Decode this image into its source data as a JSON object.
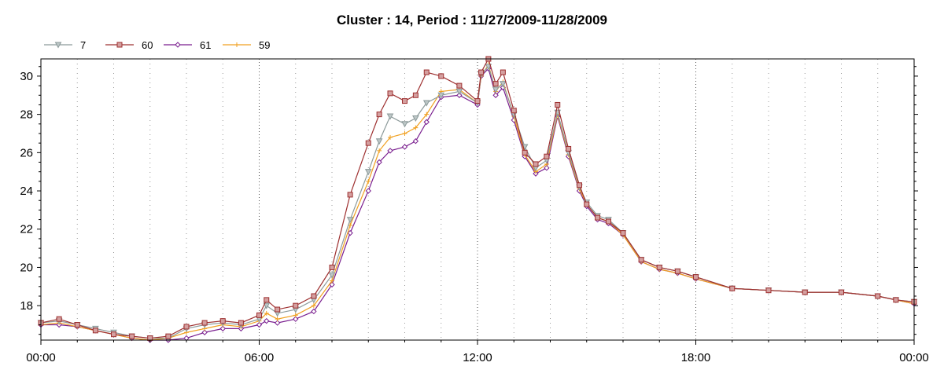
{
  "chart_data": {
    "type": "line",
    "title": "Cluster : 14, Period : 11/27/2009-11/28/2009",
    "xlabel": "",
    "ylabel": "",
    "x_unit": "hour of day (0 = 11/27/2009 00:00, 24 = 11/28/2009 00:00)",
    "xlim": [
      0,
      24
    ],
    "ylim": [
      16.2,
      30.9
    ],
    "x_ticks": [
      0,
      6,
      12,
      18,
      24
    ],
    "x_tick_labels": [
      "00:00",
      "06:00",
      "12:00",
      "18:00",
      "00:00"
    ],
    "y_ticks": [
      18,
      20,
      22,
      24,
      26,
      28,
      30
    ],
    "y_tick_labels": [
      "18",
      "20",
      "22",
      "24",
      "26",
      "28",
      "30"
    ],
    "grid": "dotted vertical lines every hour, major at 6-hour marks",
    "legend_position": "top-left",
    "series": [
      {
        "name": "7",
        "color": "#8c9a9a",
        "marker": "triangle-down",
        "points": [
          [
            0,
            17.1
          ],
          [
            0.5,
            17.2
          ],
          [
            1,
            17.0
          ],
          [
            1.5,
            16.8
          ],
          [
            2,
            16.6
          ],
          [
            2.5,
            16.4
          ],
          [
            3,
            16.3
          ],
          [
            3.5,
            16.3
          ],
          [
            4,
            16.8
          ],
          [
            4.5,
            17.0
          ],
          [
            5,
            17.1
          ],
          [
            5.5,
            17.0
          ],
          [
            6,
            17.3
          ],
          [
            6.2,
            18.0
          ],
          [
            6.5,
            17.6
          ],
          [
            7,
            17.8
          ],
          [
            7.5,
            18.3
          ],
          [
            8,
            19.6
          ],
          [
            8.5,
            22.5
          ],
          [
            9,
            25.0
          ],
          [
            9.3,
            26.6
          ],
          [
            9.6,
            27.9
          ],
          [
            10,
            27.5
          ],
          [
            10.3,
            27.8
          ],
          [
            10.6,
            28.6
          ],
          [
            11,
            29.0
          ],
          [
            11.5,
            29.2
          ],
          [
            12,
            28.6
          ],
          [
            12.1,
            30.1
          ],
          [
            12.3,
            30.5
          ],
          [
            12.5,
            29.3
          ],
          [
            12.7,
            29.6
          ],
          [
            13,
            28.0
          ],
          [
            13.3,
            26.3
          ],
          [
            13.6,
            25.2
          ],
          [
            13.9,
            25.6
          ],
          [
            14.2,
            28.1
          ],
          [
            14.5,
            26.0
          ],
          [
            14.8,
            24.2
          ],
          [
            15,
            23.4
          ],
          [
            15.3,
            22.7
          ],
          [
            15.6,
            22.5
          ],
          [
            16,
            21.8
          ],
          [
            16.5,
            20.4
          ],
          [
            17,
            20.0
          ],
          [
            17.5,
            19.8
          ],
          [
            18,
            19.5
          ],
          [
            19,
            18.9
          ],
          [
            20,
            18.8
          ],
          [
            21,
            18.7
          ],
          [
            22,
            18.7
          ],
          [
            23,
            18.5
          ],
          [
            23.5,
            18.3
          ],
          [
            24,
            18.2
          ]
        ]
      },
      {
        "name": "60",
        "color": "#9e3030",
        "marker_fill": "#d4a0a0",
        "marker": "square",
        "points": [
          [
            0,
            17.1
          ],
          [
            0.5,
            17.3
          ],
          [
            1,
            17.0
          ],
          [
            1.5,
            16.7
          ],
          [
            2,
            16.5
          ],
          [
            2.5,
            16.4
          ],
          [
            3,
            16.3
          ],
          [
            3.5,
            16.4
          ],
          [
            4,
            16.9
          ],
          [
            4.5,
            17.1
          ],
          [
            5,
            17.2
          ],
          [
            5.5,
            17.1
          ],
          [
            6,
            17.5
          ],
          [
            6.2,
            18.3
          ],
          [
            6.5,
            17.8
          ],
          [
            7,
            18.0
          ],
          [
            7.5,
            18.5
          ],
          [
            8,
            20.0
          ],
          [
            8.5,
            23.8
          ],
          [
            9,
            26.5
          ],
          [
            9.3,
            28.0
          ],
          [
            9.6,
            29.1
          ],
          [
            10,
            28.7
          ],
          [
            10.3,
            29.0
          ],
          [
            10.6,
            30.2
          ],
          [
            11,
            30.0
          ],
          [
            11.5,
            29.5
          ],
          [
            12,
            28.7
          ],
          [
            12.1,
            30.2
          ],
          [
            12.3,
            30.9
          ],
          [
            12.5,
            29.6
          ],
          [
            12.7,
            30.2
          ],
          [
            13,
            28.2
          ],
          [
            13.3,
            26.0
          ],
          [
            13.6,
            25.4
          ],
          [
            13.9,
            25.8
          ],
          [
            14.2,
            28.5
          ],
          [
            14.5,
            26.2
          ],
          [
            14.8,
            24.3
          ],
          [
            15,
            23.3
          ],
          [
            15.3,
            22.6
          ],
          [
            15.6,
            22.4
          ],
          [
            16,
            21.8
          ],
          [
            16.5,
            20.4
          ],
          [
            17,
            20.0
          ],
          [
            17.5,
            19.8
          ],
          [
            18,
            19.5
          ],
          [
            19,
            18.9
          ],
          [
            20,
            18.8
          ],
          [
            21,
            18.7
          ],
          [
            22,
            18.7
          ],
          [
            23,
            18.5
          ],
          [
            23.5,
            18.3
          ],
          [
            24,
            18.2
          ]
        ]
      },
      {
        "name": "61",
        "color": "#7a1f8f",
        "marker": "diamond",
        "points": [
          [
            0,
            17.0
          ],
          [
            0.5,
            17.0
          ],
          [
            1,
            16.9
          ],
          [
            1.5,
            16.7
          ],
          [
            2,
            16.5
          ],
          [
            2.5,
            16.3
          ],
          [
            3,
            16.2
          ],
          [
            3.5,
            16.2
          ],
          [
            4,
            16.3
          ],
          [
            4.5,
            16.6
          ],
          [
            5,
            16.8
          ],
          [
            5.5,
            16.8
          ],
          [
            6,
            17.0
          ],
          [
            6.2,
            17.2
          ],
          [
            6.5,
            17.1
          ],
          [
            7,
            17.3
          ],
          [
            7.5,
            17.7
          ],
          [
            8,
            19.1
          ],
          [
            8.5,
            21.8
          ],
          [
            9,
            24.0
          ],
          [
            9.3,
            25.5
          ],
          [
            9.6,
            26.1
          ],
          [
            10,
            26.3
          ],
          [
            10.3,
            26.6
          ],
          [
            10.6,
            27.6
          ],
          [
            11,
            28.9
          ],
          [
            11.5,
            29.0
          ],
          [
            12,
            28.5
          ],
          [
            12.1,
            30.0
          ],
          [
            12.3,
            30.4
          ],
          [
            12.5,
            29.0
          ],
          [
            12.7,
            29.4
          ],
          [
            13,
            27.7
          ],
          [
            13.3,
            25.8
          ],
          [
            13.6,
            24.9
          ],
          [
            13.9,
            25.2
          ],
          [
            14.2,
            27.9
          ],
          [
            14.5,
            25.8
          ],
          [
            14.8,
            24.0
          ],
          [
            15,
            23.2
          ],
          [
            15.3,
            22.5
          ],
          [
            15.6,
            22.3
          ],
          [
            16,
            21.7
          ],
          [
            16.5,
            20.3
          ],
          [
            17,
            19.9
          ],
          [
            17.5,
            19.7
          ],
          [
            18,
            19.4
          ],
          [
            19,
            18.9
          ],
          [
            20,
            18.8
          ],
          [
            21,
            18.7
          ],
          [
            22,
            18.7
          ],
          [
            23,
            18.5
          ],
          [
            23.5,
            18.3
          ],
          [
            24,
            18.1
          ]
        ]
      },
      {
        "name": "59",
        "color": "#f0a020",
        "marker": "plus",
        "points": [
          [
            0,
            17.0
          ],
          [
            0.5,
            17.1
          ],
          [
            1,
            16.9
          ],
          [
            1.5,
            16.7
          ],
          [
            2,
            16.5
          ],
          [
            2.5,
            16.3
          ],
          [
            3,
            16.2
          ],
          [
            3.5,
            16.3
          ],
          [
            4,
            16.6
          ],
          [
            4.5,
            16.8
          ],
          [
            5,
            17.0
          ],
          [
            5.5,
            16.9
          ],
          [
            6,
            17.2
          ],
          [
            6.2,
            17.6
          ],
          [
            6.5,
            17.3
          ],
          [
            7,
            17.5
          ],
          [
            7.5,
            18.0
          ],
          [
            8,
            19.3
          ],
          [
            8.5,
            22.2
          ],
          [
            9,
            24.5
          ],
          [
            9.3,
            26.1
          ],
          [
            9.6,
            26.8
          ],
          [
            10,
            27.0
          ],
          [
            10.3,
            27.3
          ],
          [
            10.6,
            28.0
          ],
          [
            11,
            29.2
          ],
          [
            11.5,
            29.3
          ],
          [
            12,
            28.6
          ],
          [
            12.1,
            30.0
          ],
          [
            12.3,
            30.6
          ],
          [
            12.5,
            29.2
          ],
          [
            12.7,
            29.7
          ],
          [
            13,
            27.9
          ],
          [
            13.3,
            25.9
          ],
          [
            13.6,
            25.0
          ],
          [
            13.9,
            25.4
          ],
          [
            14.2,
            28.0
          ],
          [
            14.5,
            25.9
          ],
          [
            14.8,
            24.1
          ],
          [
            15,
            23.3
          ],
          [
            15.3,
            22.6
          ],
          [
            15.6,
            22.4
          ],
          [
            16,
            21.7
          ],
          [
            16.5,
            20.3
          ],
          [
            17,
            19.9
          ],
          [
            17.5,
            19.7
          ],
          [
            18,
            19.4
          ],
          [
            19,
            18.9
          ],
          [
            20,
            18.8
          ],
          [
            21,
            18.7
          ],
          [
            22,
            18.7
          ],
          [
            23,
            18.5
          ],
          [
            23.5,
            18.3
          ],
          [
            24,
            18.1
          ]
        ]
      }
    ]
  }
}
